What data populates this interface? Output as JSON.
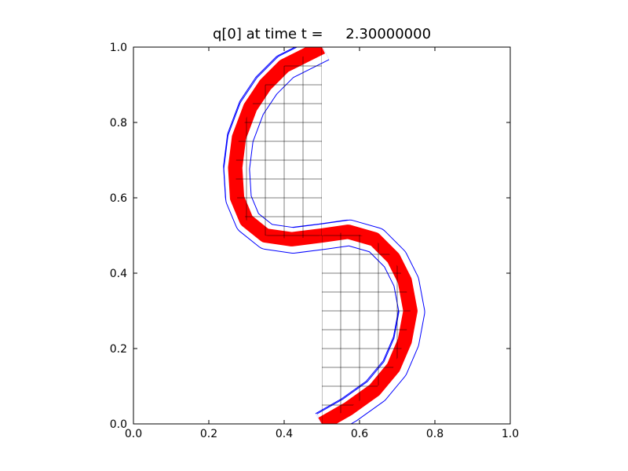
{
  "chart_data": {
    "type": "contour",
    "title": "q[0] at time t =     2.30000000",
    "xlabel": "",
    "ylabel": "",
    "xlim": [
      0.0,
      1.0
    ],
    "ylim": [
      0.0,
      1.0
    ],
    "xticks": [
      0.0,
      0.2,
      0.4,
      0.6,
      0.8,
      1.0
    ],
    "yticks": [
      0.0,
      0.2,
      0.4,
      0.6,
      0.8,
      1.0
    ],
    "xtick_labels": [
      "0.0",
      "0.2",
      "0.4",
      "0.6",
      "0.8",
      "1.0"
    ],
    "ytick_labels": [
      "0.0",
      "0.2",
      "0.4",
      "0.6",
      "0.8",
      "1.0"
    ],
    "grid": false,
    "legend": "none",
    "colors": {
      "fill": "#ff0000",
      "outer_contour": "#0000ff",
      "inner_contour": "#000000",
      "axes": "#000000"
    },
    "centerline": [
      [
        0.5,
        0.0
      ],
      [
        0.57,
        0.04
      ],
      [
        0.64,
        0.09
      ],
      [
        0.69,
        0.15
      ],
      [
        0.72,
        0.22
      ],
      [
        0.735,
        0.3
      ],
      [
        0.72,
        0.38
      ],
      [
        0.69,
        0.44
      ],
      [
        0.64,
        0.49
      ],
      [
        0.57,
        0.51
      ],
      [
        0.5,
        0.5
      ],
      [
        0.42,
        0.49
      ],
      [
        0.35,
        0.5
      ],
      [
        0.3,
        0.54
      ],
      [
        0.275,
        0.6
      ],
      [
        0.27,
        0.68
      ],
      [
        0.28,
        0.76
      ],
      [
        0.31,
        0.84
      ],
      [
        0.35,
        0.9
      ],
      [
        0.4,
        0.95
      ],
      [
        0.45,
        0.975
      ],
      [
        0.5,
        1.0
      ]
    ],
    "fill_width": 0.038,
    "contours": [
      {
        "color": "outer_contour",
        "width": 0.07,
        "dx": 0.004,
        "dy": -0.003
      },
      {
        "color": "outer_contour",
        "width": 0.058,
        "dx": -0.003,
        "dy": 0.003
      },
      {
        "color": "inner_contour",
        "width": 0.046,
        "dx": 0.002,
        "dy": 0.0
      },
      {
        "color": "inner_contour",
        "width": 0.03,
        "dx": -0.002,
        "dy": 0.002
      }
    ]
  }
}
